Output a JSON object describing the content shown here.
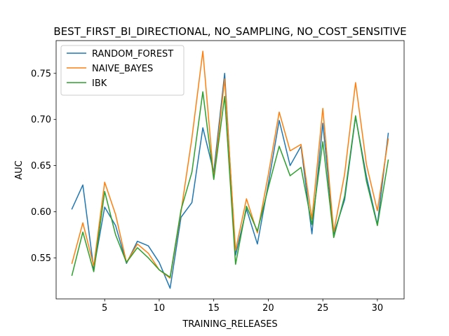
{
  "chart_data": {
    "type": "line",
    "title": "BEST_FIRST_BI_DIRECTIONAL, NO_SAMPLING, NO_COST_SENSITIVE",
    "xlabel": "TRAINING_RELEASES",
    "ylabel": "AUC",
    "xlim": [
      0.55,
      32.45
    ],
    "ylim": [
      0.5055,
      0.7855
    ],
    "xticks": [
      5,
      10,
      15,
      20,
      25,
      30
    ],
    "yticks": [
      0.55,
      0.6,
      0.65,
      0.7,
      0.75
    ],
    "ytick_labels": [
      "0.55",
      "0.60",
      "0.65",
      "0.70",
      "0.75"
    ],
    "legend_position": "upper-left",
    "grid": false,
    "x": [
      2,
      3,
      4,
      5,
      6,
      7,
      8,
      9,
      10,
      11,
      12,
      13,
      14,
      15,
      16,
      17,
      18,
      19,
      20,
      21,
      22,
      23,
      24,
      25,
      26,
      27,
      28,
      29,
      30,
      31
    ],
    "series": [
      {
        "name": "RANDOM_FOREST",
        "color": "#1f77b4",
        "values": [
          0.603,
          0.629,
          0.538,
          0.605,
          0.585,
          0.544,
          0.568,
          0.563,
          0.545,
          0.517,
          0.594,
          0.61,
          0.691,
          0.643,
          0.75,
          0.553,
          0.603,
          0.565,
          0.63,
          0.699,
          0.65,
          0.671,
          0.576,
          0.696,
          0.576,
          0.613,
          0.703,
          0.638,
          0.586,
          0.685
        ]
      },
      {
        "name": "NAIVE_BAYES",
        "color": "#ff7f0e",
        "values": [
          0.544,
          0.588,
          0.541,
          0.632,
          0.597,
          0.545,
          0.565,
          0.555,
          0.537,
          0.528,
          0.6,
          0.68,
          0.774,
          0.636,
          0.744,
          0.558,
          0.614,
          0.577,
          0.64,
          0.708,
          0.666,
          0.673,
          0.592,
          0.712,
          0.578,
          0.641,
          0.74,
          0.651,
          0.601,
          0.679
        ]
      },
      {
        "name": "IBK",
        "color": "#2ca02c",
        "values": [
          0.531,
          0.578,
          0.535,
          0.622,
          0.575,
          0.545,
          0.561,
          0.55,
          0.537,
          0.529,
          0.602,
          0.643,
          0.73,
          0.635,
          0.725,
          0.543,
          0.606,
          0.579,
          0.626,
          0.671,
          0.639,
          0.648,
          0.586,
          0.676,
          0.572,
          0.617,
          0.704,
          0.633,
          0.585,
          0.656
        ]
      }
    ]
  }
}
